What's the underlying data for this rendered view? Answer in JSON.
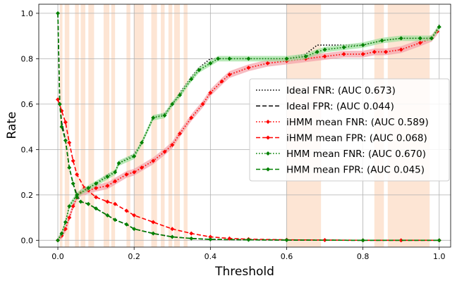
{
  "chart_data": {
    "type": "line",
    "xlabel": "Threshold",
    "ylabel": "Rate",
    "xlim": [
      -0.05,
      1.03
    ],
    "ylim": [
      -0.03,
      1.04
    ],
    "xticks": [
      0.0,
      0.2,
      0.4,
      0.6,
      0.8,
      1.0
    ],
    "yticks": [
      0.0,
      0.2,
      0.4,
      0.6,
      0.8,
      1.0
    ],
    "xtick_labels": [
      "0.0",
      "0.2",
      "0.4",
      "0.6",
      "0.8",
      "1.0"
    ],
    "ytick_labels": [
      "0.0",
      "0.2",
      "0.4",
      "0.6",
      "0.8",
      "1.0"
    ],
    "grid": true,
    "legend_position": "center-right",
    "highlight_color": "#fde0cc",
    "highlight_bands": [
      [
        0.005,
        0.012
      ],
      [
        0.018,
        0.03
      ],
      [
        0.045,
        0.055
      ],
      [
        0.06,
        0.072
      ],
      [
        0.08,
        0.095
      ],
      [
        0.12,
        0.135
      ],
      [
        0.14,
        0.15
      ],
      [
        0.18,
        0.19
      ],
      [
        0.2,
        0.225
      ],
      [
        0.245,
        0.26
      ],
      [
        0.27,
        0.28
      ],
      [
        0.29,
        0.3
      ],
      [
        0.305,
        0.32
      ],
      [
        0.33,
        0.34
      ],
      [
        0.6,
        0.69
      ],
      [
        0.83,
        0.855
      ],
      [
        0.865,
        0.975
      ]
    ],
    "series": [
      {
        "name": "Ideal FNR: (AUC 0.673)",
        "color": "#000000",
        "style": "dotted",
        "marker": "none",
        "x": [
          0.0,
          0.01,
          0.02,
          0.03,
          0.05,
          0.08,
          0.1,
          0.13,
          0.15,
          0.16,
          0.2,
          0.22,
          0.25,
          0.28,
          0.3,
          0.32,
          0.35,
          0.37,
          0.4,
          0.45,
          0.5,
          0.6,
          0.65,
          0.68,
          0.7,
          0.8,
          0.85,
          0.9,
          0.95,
          0.98,
          1.0
        ],
        "y": [
          0.0,
          0.03,
          0.08,
          0.15,
          0.2,
          0.23,
          0.25,
          0.29,
          0.3,
          0.34,
          0.38,
          0.43,
          0.54,
          0.56,
          0.6,
          0.65,
          0.72,
          0.76,
          0.8,
          0.8,
          0.8,
          0.8,
          0.82,
          0.86,
          0.86,
          0.86,
          0.88,
          0.89,
          0.89,
          0.89,
          0.95
        ]
      },
      {
        "name": "Ideal FPR: (AUC 0.044)",
        "color": "#000000",
        "style": "dashed",
        "marker": "none",
        "x": [
          0.0,
          0.005,
          0.01,
          0.02,
          0.03,
          0.04,
          0.05,
          0.06,
          0.08,
          0.1,
          0.13,
          0.15,
          0.18,
          0.2,
          0.25,
          0.3,
          0.35,
          0.4,
          0.5,
          0.6,
          0.8,
          1.0
        ],
        "y": [
          1.0,
          0.6,
          0.52,
          0.44,
          0.32,
          0.25,
          0.2,
          0.17,
          0.16,
          0.14,
          0.11,
          0.09,
          0.07,
          0.05,
          0.03,
          0.015,
          0.008,
          0.004,
          0.002,
          0.001,
          0.0,
          0.0
        ]
      },
      {
        "name": "iHMM mean FNR: (AUC 0.589)",
        "color": "#ff0000",
        "style": "dotted",
        "marker": "diamond",
        "band_color": "#f4a0a8",
        "band": 0.015,
        "x": [
          0.0,
          0.01,
          0.02,
          0.03,
          0.04,
          0.05,
          0.06,
          0.08,
          0.1,
          0.13,
          0.15,
          0.18,
          0.2,
          0.22,
          0.25,
          0.28,
          0.3,
          0.32,
          0.35,
          0.38,
          0.4,
          0.43,
          0.45,
          0.5,
          0.55,
          0.6,
          0.65,
          0.7,
          0.75,
          0.8,
          0.83,
          0.86,
          0.9,
          0.95,
          0.98,
          0.995
        ],
        "y": [
          0.0,
          0.02,
          0.05,
          0.1,
          0.15,
          0.19,
          0.21,
          0.22,
          0.23,
          0.24,
          0.26,
          0.29,
          0.3,
          0.32,
          0.35,
          0.39,
          0.42,
          0.47,
          0.54,
          0.6,
          0.65,
          0.7,
          0.73,
          0.76,
          0.78,
          0.79,
          0.8,
          0.81,
          0.82,
          0.82,
          0.83,
          0.83,
          0.84,
          0.87,
          0.89,
          0.92
        ]
      },
      {
        "name": "iHMM mean FPR: (AUC 0.068)",
        "color": "#ff0000",
        "style": "dashed",
        "marker": "diamond",
        "x": [
          0.0,
          0.01,
          0.02,
          0.03,
          0.04,
          0.05,
          0.07,
          0.1,
          0.13,
          0.15,
          0.18,
          0.2,
          0.25,
          0.3,
          0.35,
          0.4,
          0.45,
          0.5,
          0.6,
          0.7,
          0.8,
          0.9,
          1.0
        ],
        "y": [
          0.62,
          0.57,
          0.52,
          0.43,
          0.35,
          0.29,
          0.23,
          0.19,
          0.17,
          0.16,
          0.13,
          0.11,
          0.08,
          0.05,
          0.03,
          0.015,
          0.008,
          0.005,
          0.002,
          0.001,
          0.0,
          0.0,
          0.0
        ]
      },
      {
        "name": "HMM mean FNR: (AUC 0.670)",
        "color": "#008000",
        "style": "dotted",
        "marker": "diamond",
        "band_color": "#9be09b",
        "band": 0.012,
        "x": [
          0.0,
          0.01,
          0.02,
          0.03,
          0.05,
          0.08,
          0.1,
          0.13,
          0.15,
          0.16,
          0.2,
          0.22,
          0.25,
          0.28,
          0.3,
          0.32,
          0.35,
          0.37,
          0.4,
          0.42,
          0.45,
          0.5,
          0.6,
          0.65,
          0.68,
          0.7,
          0.75,
          0.8,
          0.85,
          0.9,
          0.95,
          0.98,
          1.0
        ],
        "y": [
          0.0,
          0.03,
          0.08,
          0.15,
          0.2,
          0.23,
          0.25,
          0.28,
          0.3,
          0.34,
          0.37,
          0.43,
          0.54,
          0.55,
          0.6,
          0.64,
          0.71,
          0.75,
          0.78,
          0.8,
          0.8,
          0.8,
          0.8,
          0.81,
          0.83,
          0.84,
          0.85,
          0.86,
          0.88,
          0.89,
          0.89,
          0.89,
          0.94
        ]
      },
      {
        "name": "HMM mean FPR: (AUC 0.045)",
        "color": "#008000",
        "style": "dashed",
        "marker": "diamond",
        "x": [
          0.0,
          0.005,
          0.01,
          0.02,
          0.03,
          0.04,
          0.05,
          0.06,
          0.08,
          0.1,
          0.13,
          0.15,
          0.18,
          0.2,
          0.25,
          0.3,
          0.35,
          0.4,
          0.5,
          0.6,
          0.8,
          1.0
        ],
        "y": [
          1.0,
          0.6,
          0.5,
          0.44,
          0.32,
          0.25,
          0.19,
          0.17,
          0.16,
          0.14,
          0.11,
          0.09,
          0.07,
          0.05,
          0.03,
          0.015,
          0.008,
          0.004,
          0.002,
          0.001,
          0.0,
          0.0
        ]
      }
    ]
  }
}
